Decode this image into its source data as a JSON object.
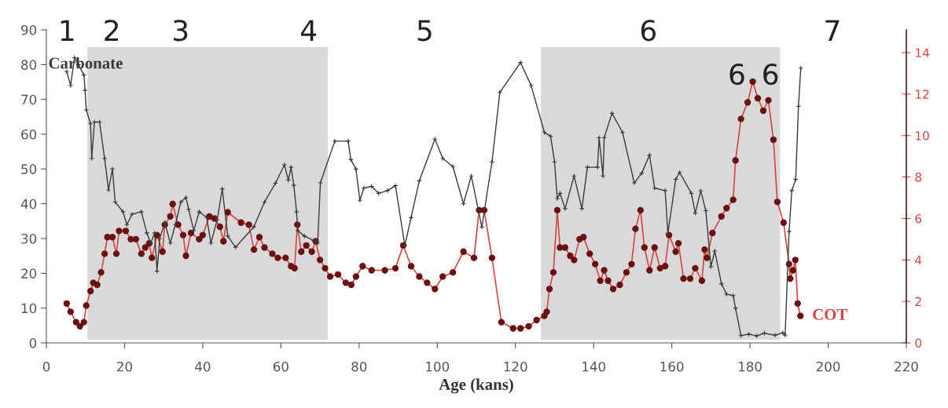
{
  "chart_data": {
    "type": "line",
    "xlabel": "Age (kans)",
    "xlim": [
      0,
      220
    ],
    "xticks": [
      0,
      20,
      40,
      60,
      80,
      100,
      120,
      140,
      160,
      180,
      200,
      220
    ],
    "ylim": [
      0,
      90
    ],
    "yticks": [
      0,
      10,
      20,
      30,
      40,
      50,
      60,
      70,
      80,
      90
    ],
    "y2lim": [
      0,
      15.1
    ],
    "y2ticks": [
      0,
      2,
      4,
      6,
      8,
      10,
      12,
      14
    ],
    "grid": false,
    "legend": false,
    "bands": [
      {
        "axis": "x",
        "from": 10.5,
        "to": 72,
        "color": "#d9d9d9"
      },
      {
        "axis": "x",
        "from": 126.5,
        "to": 187.7,
        "color": "#d9d9d9"
      }
    ],
    "annotations": [
      "1",
      "2",
      "3",
      "4",
      "5",
      "6",
      "7",
      "6",
      "6"
    ],
    "series": [
      {
        "name": "Carbonate",
        "color": "#3a3a3a",
        "marker": "cross",
        "x": [
          5.2,
          6.2,
          7.2,
          8.2,
          9.6,
          9.9,
          10.2,
          11.3,
          11.6,
          12.3,
          13.6,
          14.9,
          15.9,
          16.9,
          17.6,
          19.6,
          20.6,
          21.9,
          24.3,
          25.7,
          26.7,
          27.7,
          28.3,
          29,
          30.3,
          31.7,
          33,
          34.4,
          35.7,
          36.4,
          37.7,
          39.1,
          41,
          42.1,
          43.7,
          45,
          46.4,
          48.4,
          53.1,
          55.8,
          58.6,
          60.9,
          61.9,
          62.6,
          63.3,
          64,
          64.3,
          66,
          68.4,
          69.4,
          70.1,
          73.8,
          77.2,
          77.9,
          79.2,
          80.2,
          81.2,
          83.2,
          85,
          87.3,
          89.3,
          91.7,
          93.3,
          95.4,
          99.4,
          101.4,
          104,
          106.7,
          108.7,
          111.4,
          114,
          116,
          121.3,
          124,
          127.4,
          129,
          130,
          130.7,
          131.4,
          132.7,
          135,
          137,
          138.4,
          141,
          141.4,
          142.4,
          142.7,
          144.7,
          147.4,
          150.4,
          152.3,
          154.3,
          155.6,
          158.3,
          159,
          161,
          162,
          165,
          166,
          167.4,
          168.7,
          170,
          171,
          172.7,
          174,
          175.7,
          176.3,
          177.7,
          179.7,
          181.7,
          183.7,
          186.4,
          188.4,
          189,
          190,
          190.7,
          191.7,
          192.4,
          193
        ],
        "values": [
          78,
          74,
          82,
          80,
          77,
          72.6,
          67,
          63,
          53,
          63.5,
          63.5,
          53,
          44,
          50,
          40.5,
          37.7,
          34,
          37,
          37.7,
          31.6,
          28.7,
          31.6,
          20.6,
          30,
          34.6,
          28.7,
          34,
          40.5,
          41.8,
          38.4,
          32.3,
          37.7,
          36.1,
          28.7,
          35.4,
          44.3,
          30.7,
          27.5,
          33.4,
          40.5,
          45.9,
          51.2,
          46.8,
          50.5,
          45.3,
          37.7,
          32.3,
          30.7,
          29.4,
          28.7,
          46,
          58,
          58,
          52.7,
          50,
          41,
          44.5,
          45,
          43,
          43.8,
          45.2,
          28,
          36,
          46.6,
          58.6,
          53,
          50.7,
          40,
          48,
          33.3,
          52,
          72,
          80.6,
          74,
          60.5,
          59.4,
          52,
          41.5,
          43,
          38.6,
          48,
          38.6,
          50.5,
          50.5,
          59,
          48,
          59,
          66,
          60.5,
          46,
          48.8,
          54,
          44.5,
          43.8,
          31.5,
          47,
          49,
          43,
          37.3,
          43.7,
          38,
          21.9,
          26.4,
          17,
          14,
          13.6,
          10,
          2.1,
          2.5,
          2,
          2.8,
          2.2,
          2.9,
          2.2,
          32,
          43.8,
          47,
          68,
          79
        ]
      },
      {
        "name": "COT",
        "color": "#d64545",
        "marker": "circle",
        "axis": "y2",
        "x": [
          5.2,
          6.2,
          7.6,
          8.6,
          9.6,
          10.2,
          11.3,
          12,
          13,
          14,
          14.9,
          15.6,
          16.9,
          17.9,
          18.6,
          20.3,
          21.6,
          22.9,
          24.3,
          25.3,
          26.3,
          27,
          28.3,
          29.7,
          30.3,
          31.7,
          32.3,
          33.7,
          35,
          35.7,
          37,
          39.1,
          40,
          41.7,
          43,
          44.4,
          45.3,
          46.4,
          49.8,
          51.8,
          53.1,
          54.5,
          55.8,
          57.8,
          59.2,
          61.2,
          62.6,
          63.5,
          64.2,
          65.2,
          66.5,
          67.9,
          68.9,
          70,
          71.3,
          72.6,
          74.6,
          76.6,
          78,
          79.2,
          80.9,
          83.2,
          86.6,
          89.3,
          91.3,
          93.3,
          95.4,
          97.4,
          99.4,
          101.4,
          104,
          106.7,
          109.4,
          110.7,
          112,
          114,
          116.4,
          119.4,
          121.3,
          123.4,
          125.4,
          127.4,
          128,
          128.7,
          129.7,
          130.7,
          131.4,
          132.7,
          134,
          135,
          136.4,
          137.4,
          139,
          140.4,
          141.7,
          142.7,
          143.7,
          145,
          146.7,
          148.4,
          149.7,
          150.7,
          152,
          153,
          154.3,
          155.6,
          157,
          158.3,
          159.3,
          161,
          161.7,
          163,
          164.7,
          166,
          167.7,
          168.4,
          169,
          170.4,
          172.7,
          174,
          175.7,
          176.3,
          177.7,
          179.4,
          180.7,
          182,
          183.4,
          184.7,
          186,
          187,
          188.6,
          190,
          190.3,
          191,
          191.6,
          192.2,
          192.9
        ],
        "values": [
          1.9,
          1.5,
          1.0,
          0.8,
          1.0,
          1.8,
          2.5,
          2.9,
          2.8,
          3.4,
          4.3,
          5.1,
          5.1,
          4.3,
          5.4,
          5.4,
          5.0,
          5.0,
          4.3,
          4.6,
          4.8,
          4.1,
          5.2,
          4.4,
          5.7,
          6.1,
          6.7,
          5.7,
          5.2,
          4.2,
          5.3,
          5.0,
          5.2,
          6.1,
          6.0,
          5.6,
          4.9,
          6.3,
          5.8,
          5.7,
          4.5,
          5.1,
          4.6,
          4.3,
          4.1,
          4.1,
          3.7,
          3.6,
          5.7,
          4.4,
          4.7,
          4.4,
          4.9,
          4.0,
          3.6,
          3.2,
          3.3,
          2.9,
          2.8,
          3.2,
          3.7,
          3.5,
          3.5,
          3.6,
          4.7,
          3.7,
          3.2,
          2.9,
          2.6,
          3.2,
          3.4,
          4.4,
          4.1,
          6.4,
          6.4,
          4.1,
          1.0,
          0.7,
          0.7,
          0.8,
          1.1,
          1.3,
          1.5,
          2.6,
          3.4,
          6.4,
          4.6,
          4.6,
          4.2,
          4.0,
          5.0,
          5.1,
          4.3,
          3.8,
          3.0,
          3.5,
          3.0,
          2.6,
          2.8,
          3.4,
          3.8,
          5.5,
          6.4,
          4.6,
          3.5,
          4.6,
          3.6,
          3.7,
          5.2,
          4.4,
          4.8,
          3.1,
          3.1,
          3.6,
          3.0,
          4.5,
          4.1,
          5.3,
          6.1,
          6.5,
          6.9,
          8.8,
          10.8,
          11.6,
          12.6,
          11.8,
          11.2,
          11.7,
          9.8,
          6.8,
          5.8,
          3.8,
          3.1,
          3.5,
          4.0,
          1.9,
          1.3
        ]
      }
    ]
  }
}
